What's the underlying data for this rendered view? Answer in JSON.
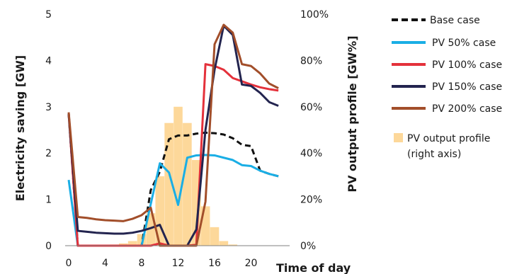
{
  "chart_data": {
    "type": "line",
    "title": "",
    "xlabel": "Time of day",
    "ylabel_left": "Electricity saving [GW]",
    "ylabel_right": "PV output profile [GW%]",
    "xlim": [
      0,
      24
    ],
    "ylim_left": [
      0,
      5
    ],
    "ylim_right": [
      0,
      100
    ],
    "x_ticks": [
      0,
      4,
      8,
      12,
      16,
      20
    ],
    "y_ticks_left": [
      0,
      1,
      2,
      3,
      4,
      5
    ],
    "y_ticks_right": [
      "0%",
      "20%",
      "40%",
      "60%",
      "80%",
      "100%"
    ],
    "grid": false,
    "legend_position": "right",
    "colors": {
      "base": "#111111",
      "pv50": "#1aaee5",
      "pv100": "#e4313b",
      "pv150": "#23244f",
      "pv200": "#a24e2a",
      "profile": "#fdd89a"
    },
    "bars": {
      "name": "PV output profile",
      "note": "(right axis)",
      "x": [
        5,
        6,
        7,
        8,
        9,
        10,
        11,
        12,
        13,
        14,
        15,
        16,
        17,
        18
      ],
      "values": [
        0.5,
        1,
        2,
        5,
        14,
        30,
        53,
        60,
        53,
        37,
        17,
        8,
        2,
        0.5
      ]
    },
    "series": [
      {
        "name": "Base case",
        "key": "base",
        "x": [
          0,
          1,
          8,
          9,
          10,
          11,
          12,
          13,
          14,
          15,
          16,
          17,
          18,
          19,
          20,
          21,
          22,
          23
        ],
        "values": [
          2.85,
          0,
          0,
          1.2,
          1.6,
          2.3,
          2.38,
          2.38,
          2.42,
          2.44,
          2.43,
          2.4,
          2.32,
          2.18,
          2.15,
          1.62,
          1.55,
          1.5
        ]
      },
      {
        "name": "PV 50% case",
        "key": "pv50",
        "x": [
          0,
          1,
          8,
          9,
          10,
          11,
          12,
          13,
          14,
          15,
          16,
          17,
          18,
          19,
          20,
          21,
          22,
          23
        ],
        "values": [
          1.42,
          0,
          0,
          0.9,
          1.78,
          1.58,
          0.88,
          1.9,
          1.95,
          1.96,
          1.95,
          1.9,
          1.85,
          1.74,
          1.72,
          1.62,
          1.55,
          1.5
        ]
      },
      {
        "name": "PV 100% case",
        "key": "pv100",
        "x": [
          0,
          1,
          8,
          9,
          10,
          11,
          12,
          13,
          14,
          15,
          16,
          17,
          18,
          19,
          20,
          21,
          22,
          23
        ],
        "values": [
          2.85,
          0,
          0,
          0,
          0.05,
          0,
          0,
          0,
          0.02,
          3.92,
          3.88,
          3.8,
          3.62,
          3.55,
          3.48,
          3.42,
          3.38,
          3.35
        ]
      },
      {
        "name": "PV 150% case",
        "key": "pv150",
        "x": [
          0,
          1,
          2,
          3,
          4,
          5,
          6,
          7,
          8,
          9,
          10,
          11,
          12,
          13,
          14,
          15,
          16,
          17,
          18,
          19,
          20,
          21,
          22,
          23
        ],
        "values": [
          2.85,
          0.32,
          0.3,
          0.28,
          0.27,
          0.26,
          0.26,
          0.28,
          0.32,
          0.38,
          0.45,
          0,
          0,
          0,
          0.35,
          2.5,
          3.8,
          4.75,
          4.55,
          3.48,
          3.45,
          3.3,
          3.1,
          3.02
        ]
      },
      {
        "name": "PV 200% case",
        "key": "pv200",
        "x": [
          0,
          1,
          2,
          3,
          4,
          5,
          6,
          7,
          8,
          9,
          10,
          11,
          12,
          13,
          14,
          15,
          16,
          17,
          18,
          19,
          20,
          21,
          22,
          23
        ],
        "values": [
          2.88,
          0.62,
          0.6,
          0.57,
          0.55,
          0.54,
          0.53,
          0.58,
          0.66,
          0.82,
          0,
          0,
          0,
          0,
          0,
          0.95,
          4.35,
          4.77,
          4.6,
          3.92,
          3.88,
          3.72,
          3.5,
          3.4
        ]
      }
    ]
  }
}
